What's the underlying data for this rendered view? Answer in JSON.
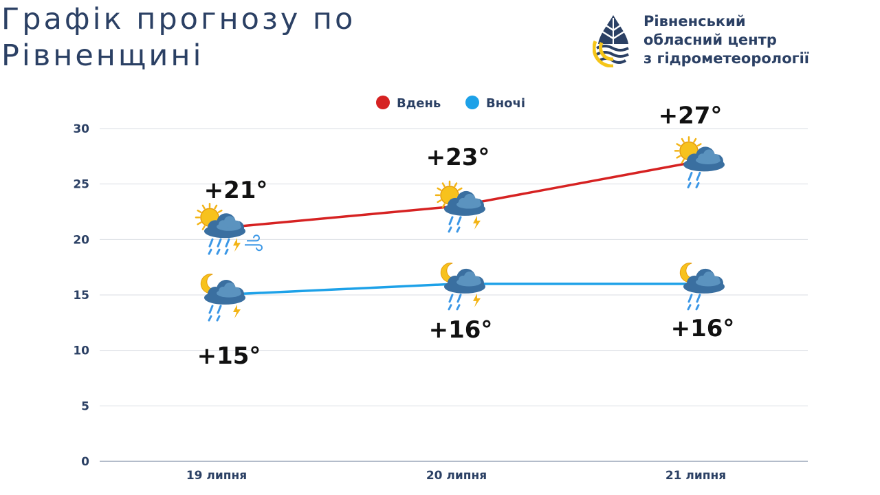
{
  "header": {
    "title_line1": "Графік прогнозу по",
    "title_line2": "Рівненщині"
  },
  "organization": {
    "logo_icon": "water-drop-leaf-icon",
    "name_line1": "Рівненський",
    "name_line2": "обласний центр",
    "name_line3": "з гідрометеорології",
    "logo_colors": {
      "primary": "#2b4064",
      "accent": "#f5c518"
    }
  },
  "chart_data": {
    "type": "line",
    "categories": [
      "19 липня",
      "20 липня",
      "21 липня"
    ],
    "ylim": [
      0,
      30
    ],
    "yticks": [
      0,
      5,
      10,
      15,
      20,
      25,
      30
    ],
    "grid": true,
    "legend_position": "top-center",
    "series": [
      {
        "name": "Вдень",
        "color": "#d62222",
        "values": [
          21,
          23,
          27
        ],
        "labels": [
          "+21°",
          "+23°",
          "+27°"
        ],
        "icons": [
          "sun-cloud-rain-thunder-wind-icon",
          "sun-cloud-rain-thunder-icon",
          "sun-cloud-rain-icon"
        ]
      },
      {
        "name": "Вночі",
        "color": "#1da1e8",
        "values": [
          15,
          16,
          16
        ],
        "labels": [
          "+15°",
          "+16°",
          "+16°"
        ],
        "icons": [
          "moon-cloud-rain-thunder-icon",
          "moon-cloud-rain-thunder-icon",
          "moon-cloud-rain-icon"
        ]
      }
    ]
  }
}
